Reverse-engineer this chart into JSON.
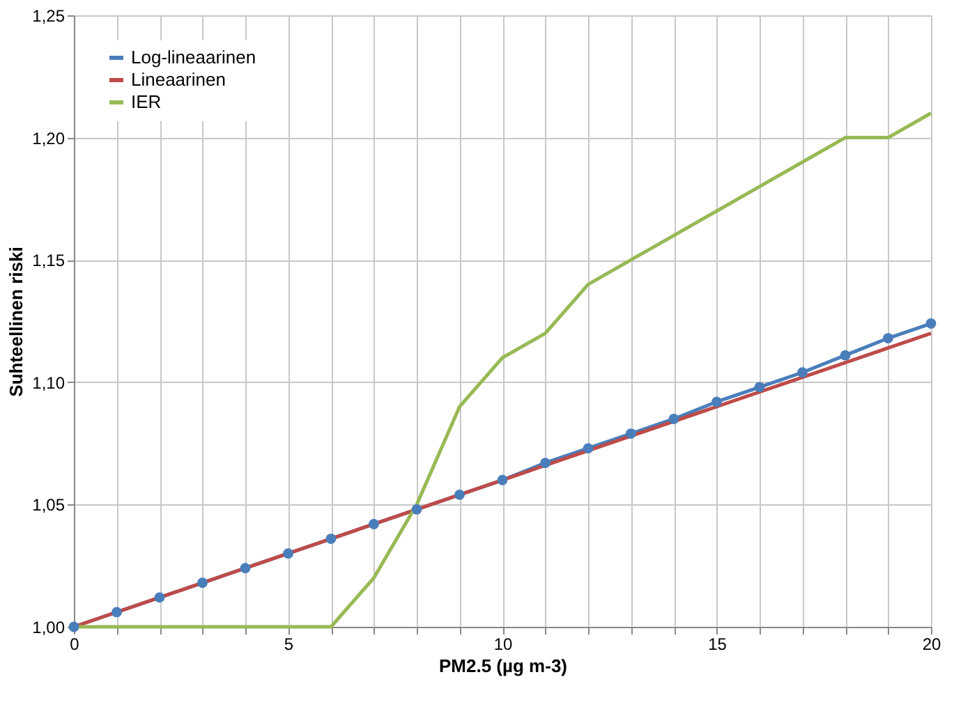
{
  "chart_data": {
    "type": "line",
    "xlabel": "PM2.5  (µg m-3)",
    "ylabel": "Suhteellinen riski",
    "xlim": [
      0,
      20
    ],
    "ylim": [
      1.0,
      1.25
    ],
    "xticks": [
      0,
      {
        "value": 1,
        "label": null
      },
      {
        "value": 2,
        "label": null
      },
      {
        "value": 3,
        "label": null
      },
      {
        "value": 4,
        "label": null
      },
      5,
      {
        "value": 6,
        "label": null
      },
      {
        "value": 7,
        "label": null
      },
      {
        "value": 8,
        "label": null
      },
      {
        "value": 9,
        "label": null
      },
      10,
      {
        "value": 11,
        "label": null
      },
      {
        "value": 12,
        "label": null
      },
      {
        "value": 13,
        "label": null
      },
      {
        "value": 14,
        "label": null
      },
      15,
      {
        "value": 16,
        "label": null
      },
      {
        "value": 17,
        "label": null
      },
      {
        "value": 18,
        "label": null
      },
      {
        "value": 19,
        "label": null
      },
      20
    ],
    "yticks": [
      {
        "value": 1.0,
        "label": "1,00"
      },
      {
        "value": 1.05,
        "label": "1,05"
      },
      {
        "value": 1.1,
        "label": "1,10"
      },
      {
        "value": 1.15,
        "label": "1,15"
      },
      {
        "value": 1.2,
        "label": "1,20"
      },
      {
        "value": 1.25,
        "label": "1,25"
      }
    ],
    "grid": true,
    "legend": "top left",
    "series": [
      {
        "name": "Log-lineaarinen",
        "color": "#4a7ebb",
        "marker": "circle",
        "x": [
          0,
          1,
          2,
          3,
          4,
          5,
          6,
          7,
          8,
          9,
          10,
          11,
          12,
          13,
          14,
          15,
          16,
          17,
          18,
          19,
          20
        ],
        "values": [
          1.0,
          1.006,
          1.012,
          1.018,
          1.024,
          1.03,
          1.036,
          1.042,
          1.048,
          1.054,
          1.06,
          1.067,
          1.073,
          1.079,
          1.085,
          1.092,
          1.098,
          1.104,
          1.111,
          1.118,
          1.124
        ]
      },
      {
        "name": "Lineaarinen",
        "color": "#be4b48",
        "marker": "none",
        "x": [
          0,
          20
        ],
        "values": [
          1.0,
          1.12
        ]
      },
      {
        "name": "IER",
        "color": "#98b954",
        "marker": "none",
        "x": [
          0,
          6,
          7,
          8,
          9,
          10,
          11,
          12,
          13,
          14,
          15,
          16,
          17,
          18,
          19,
          20
        ],
        "values": [
          1.0,
          1.0,
          1.02,
          1.05,
          1.09,
          1.11,
          1.12,
          1.14,
          1.15,
          1.16,
          1.17,
          1.18,
          1.19,
          1.2,
          1.2,
          1.21
        ]
      }
    ]
  }
}
